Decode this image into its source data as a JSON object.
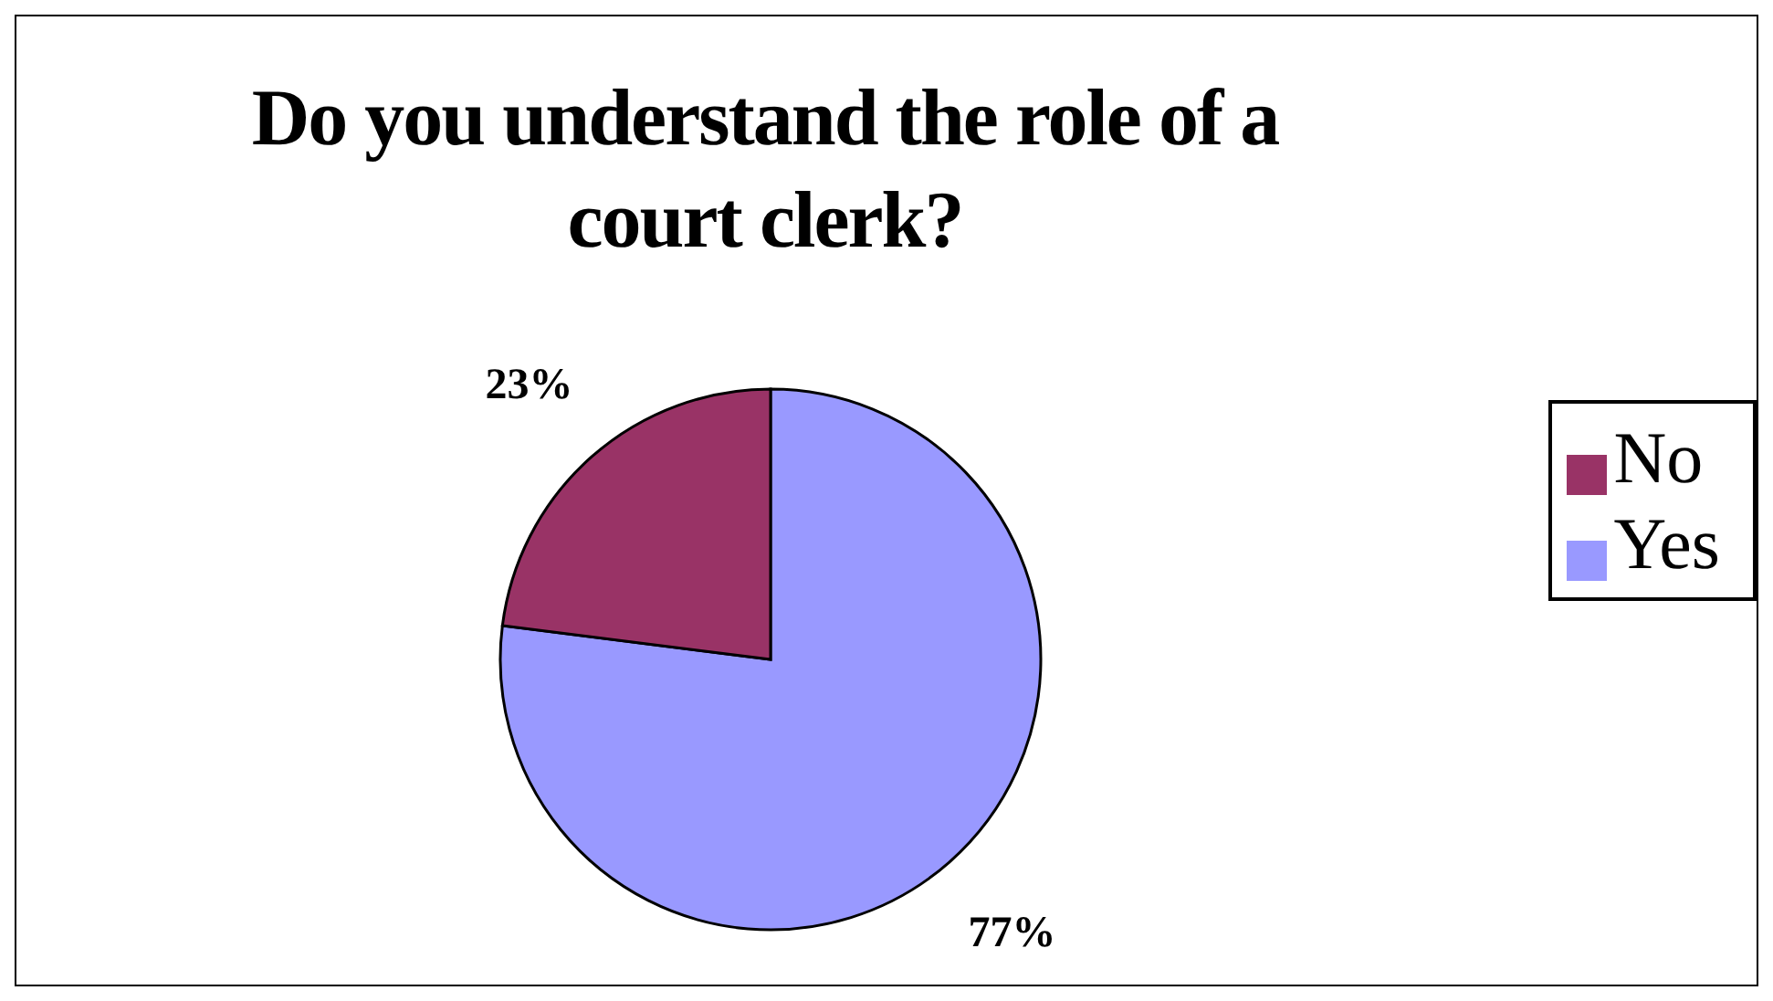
{
  "chart_data": {
    "type": "pie",
    "title": "Do you understand the role of a court clerk?",
    "categories": [
      "Yes",
      "No"
    ],
    "values": [
      77,
      23
    ],
    "colors": [
      "#9999ff",
      "#993366"
    ],
    "value_labels": [
      "77%",
      "23%"
    ],
    "legend": "right"
  }
}
